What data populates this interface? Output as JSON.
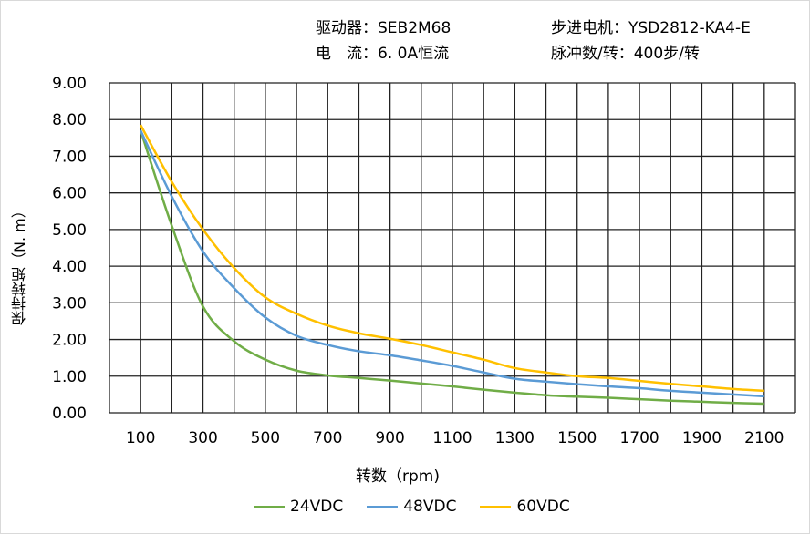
{
  "header": {
    "driver": "驱动器：SEB2M68",
    "current": "电　流：6. 0A恒流",
    "motor": "步进电机：YSD2812-KA4-E",
    "pulses": "脉冲数/转：400步/转"
  },
  "chart_data": {
    "type": "line",
    "title": "",
    "xlabel": "转数（rpm)",
    "ylabel": "保持转矩（N. m）",
    "xlim": [
      0,
      2200
    ],
    "ylim": [
      0,
      9
    ],
    "grid": true,
    "legend_position": "bottom",
    "x_ticks": [
      "100",
      "300",
      "500",
      "700",
      "900",
      "1100",
      "1300",
      "1500",
      "1700",
      "1900",
      "2100"
    ],
    "y_ticks": [
      "0.00",
      "1.00",
      "2.00",
      "3.00",
      "4.00",
      "5.00",
      "6.00",
      "7.00",
      "8.00",
      "9.00"
    ],
    "x": [
      100,
      200,
      300,
      400,
      500,
      600,
      700,
      800,
      900,
      1000,
      1100,
      1200,
      1300,
      1400,
      1500,
      1600,
      1700,
      1800,
      1900,
      2000,
      2100
    ],
    "series": [
      {
        "name": "24VDC",
        "color": "#70ad47",
        "values": [
          7.7,
          5.1,
          2.9,
          1.95,
          1.45,
          1.15,
          1.02,
          0.95,
          0.88,
          0.8,
          0.72,
          0.63,
          0.55,
          0.48,
          0.44,
          0.41,
          0.37,
          0.33,
          0.3,
          0.27,
          0.25
        ]
      },
      {
        "name": "48VDC",
        "color": "#5b9bd5",
        "values": [
          7.7,
          5.9,
          4.4,
          3.4,
          2.6,
          2.1,
          1.85,
          1.68,
          1.57,
          1.43,
          1.28,
          1.1,
          0.93,
          0.85,
          0.78,
          0.72,
          0.67,
          0.6,
          0.55,
          0.5,
          0.45
        ]
      },
      {
        "name": "60VDC",
        "color": "#ffc000",
        "values": [
          7.85,
          6.3,
          5.0,
          3.95,
          3.15,
          2.7,
          2.38,
          2.17,
          2.02,
          1.85,
          1.65,
          1.45,
          1.22,
          1.1,
          1.0,
          0.95,
          0.87,
          0.79,
          0.72,
          0.65,
          0.6
        ]
      }
    ]
  }
}
